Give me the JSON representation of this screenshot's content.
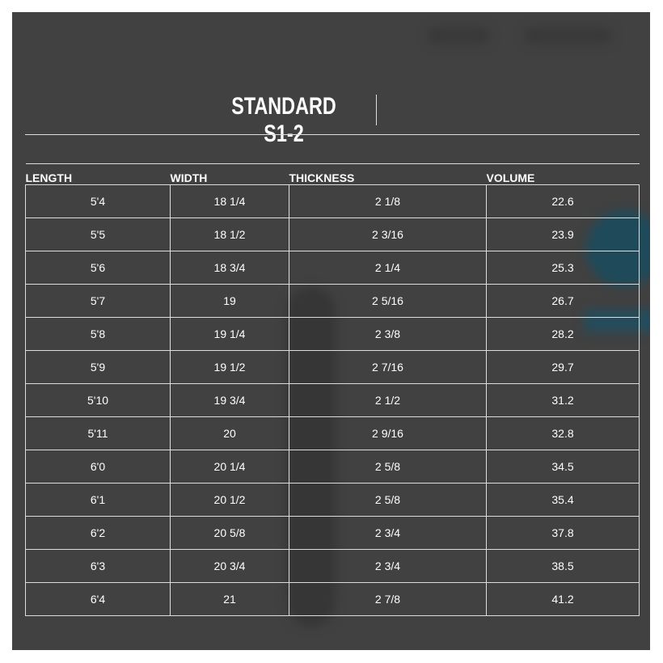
{
  "title": "STANDARD S1-2",
  "columns": [
    "LENGTH",
    "WIDTH",
    "THICKNESS",
    "VOLUME"
  ],
  "rows": [
    [
      "5'4",
      "18 1/4",
      "2 1/8",
      "22.6"
    ],
    [
      "5'5",
      "18 1/2",
      "2 3/16",
      "23.9"
    ],
    [
      "5'6",
      "18 3/4",
      "2 1/4",
      "25.3"
    ],
    [
      "5'7",
      "19",
      "2 5/16",
      "26.7"
    ],
    [
      "5'8",
      "19 1/4",
      "2 3/8",
      "28.2"
    ],
    [
      "5'9",
      "19 1/2",
      "2 7/16",
      "29.7"
    ],
    [
      "5'10",
      "19 3/4",
      "2 1/2",
      "31.2"
    ],
    [
      "5'11",
      "20",
      "2 9/16",
      "32.8"
    ],
    [
      "6'0",
      "20 1/4",
      "2 5/8",
      "34.5"
    ],
    [
      "6'1",
      "20 1/2",
      "2 5/8",
      "35.4"
    ],
    [
      "6'2",
      "20 5/8",
      "2 3/4",
      "37.8"
    ],
    [
      "6'3",
      "20 3/4",
      "2 3/4",
      "38.5"
    ],
    [
      "6'4",
      "21",
      "2 7/8",
      "41.2"
    ]
  ],
  "colors": {
    "panel": "#414141",
    "text": "#ffffff",
    "accent_blurred": "#1f4a5a"
  }
}
